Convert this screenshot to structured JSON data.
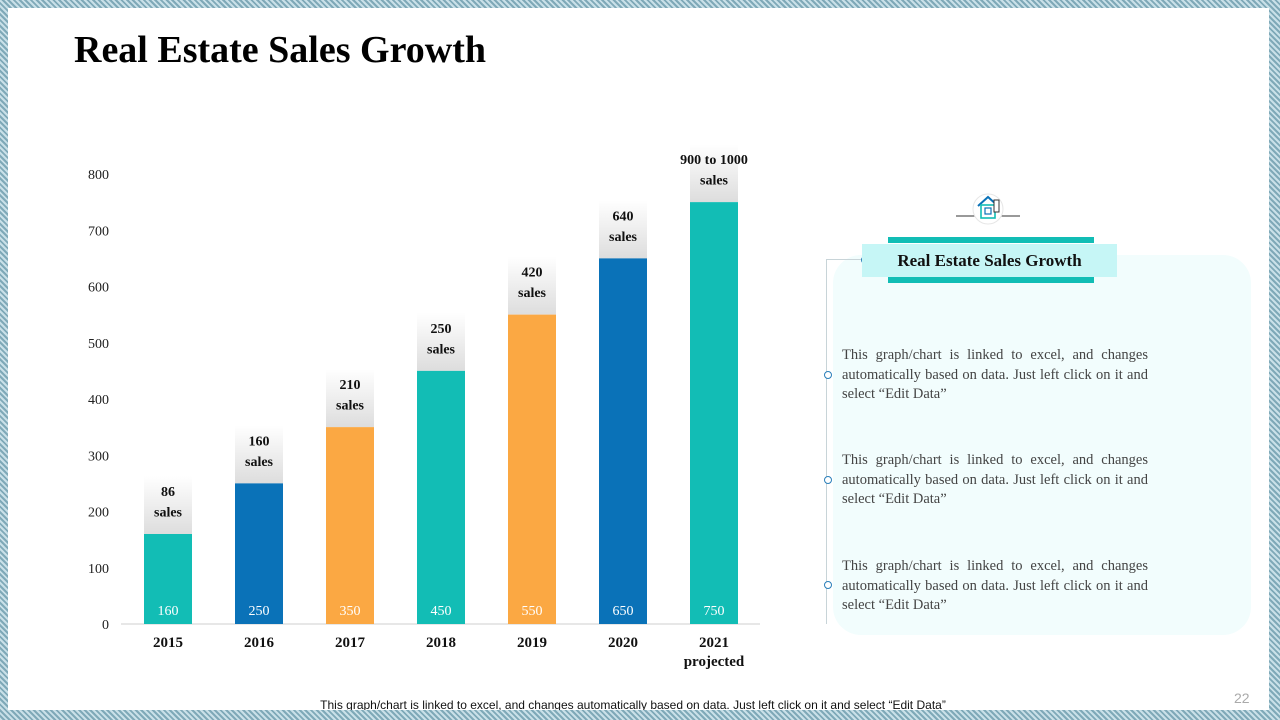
{
  "slide": {
    "title": "Real Estate Sales Growth",
    "footer": "This graph/chart is linked to excel, and changes automatically based on data. Just left click on it and select “Edit Data”",
    "page_number": "22"
  },
  "panel": {
    "heading": "Real Estate Sales Growth",
    "icon": "house-document-icon",
    "descriptions": [
      "This graph/chart is linked to excel, and changes automatically based on data. Just left click on it and select “Edit Data”",
      "This graph/chart is linked to excel, and changes automatically based on data. Just left click on it and select “Edit Data”",
      "This graph/chart is linked to excel, and changes automatically based on data. Just left click on it and select “Edit Data”"
    ]
  },
  "colors": {
    "teal": "#12bdb5",
    "blue": "#0a72b8",
    "orange": "#fba843",
    "heading_fill": "#c6f6f6",
    "panel_fill": "#f2fdfd"
  },
  "chart_data": {
    "type": "bar",
    "title": "",
    "xlabel": "",
    "ylabel": "",
    "ylim": [
      0,
      800
    ],
    "yticks": [
      0,
      100,
      200,
      300,
      400,
      500,
      600,
      700,
      800
    ],
    "categories": [
      [
        "2015"
      ],
      [
        "2016"
      ],
      [
        "2017"
      ],
      [
        "2018"
      ],
      [
        "2019"
      ],
      [
        "2020"
      ],
      [
        "2021",
        "projected"
      ]
    ],
    "values": [
      160,
      250,
      350,
      450,
      550,
      650,
      750
    ],
    "value_labels": [
      "160",
      "250",
      "350",
      "450",
      "550",
      "650",
      "750"
    ],
    "sales_labels": [
      [
        "86",
        "sales"
      ],
      [
        "160",
        "sales"
      ],
      [
        "210",
        "sales"
      ],
      [
        "250",
        "sales"
      ],
      [
        "420",
        "sales"
      ],
      [
        "640",
        "sales"
      ],
      [
        "900 to 1000",
        "sales"
      ]
    ],
    "bar_colors": [
      "teal",
      "blue",
      "orange",
      "teal",
      "orange",
      "blue",
      "teal"
    ],
    "grid": false,
    "legend": "none"
  }
}
